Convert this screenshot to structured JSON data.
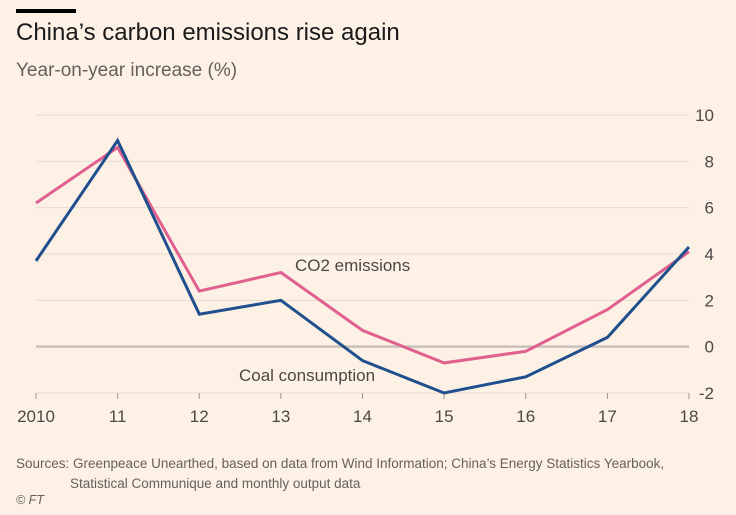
{
  "title": "China’s carbon emissions rise again",
  "subtitle": "Year-on-year increase (%)",
  "source": {
    "line1": "Sources: Greenpeace Unearthed, based on data from Wind Information; China’s Energy Statistics Yearbook,",
    "line2": "Statistical Communique and monthly output data"
  },
  "copyright": "© FT",
  "chart_data": {
    "type": "line",
    "title": "China’s carbon emissions rise again",
    "ylabel": "Year-on-year increase (%)",
    "x": [
      "2010",
      "11",
      "12",
      "13",
      "14",
      "15",
      "16",
      "17",
      "18"
    ],
    "ylim": [
      -2,
      10
    ],
    "yticks": [
      -2,
      0,
      2,
      4,
      6,
      8,
      10
    ],
    "grid": true,
    "series": [
      {
        "name": "CO2 emissions",
        "color": "#e0608f",
        "values": [
          6.2,
          8.6,
          2.4,
          3.2,
          0.7,
          -0.7,
          -0.2,
          1.6,
          4.1
        ]
      },
      {
        "name": "Coal consumption",
        "color": "#1f4f8c",
        "values": [
          3.7,
          8.9,
          1.4,
          2.0,
          -0.6,
          -2.0,
          -1.3,
          0.4,
          4.3
        ]
      }
    ]
  }
}
